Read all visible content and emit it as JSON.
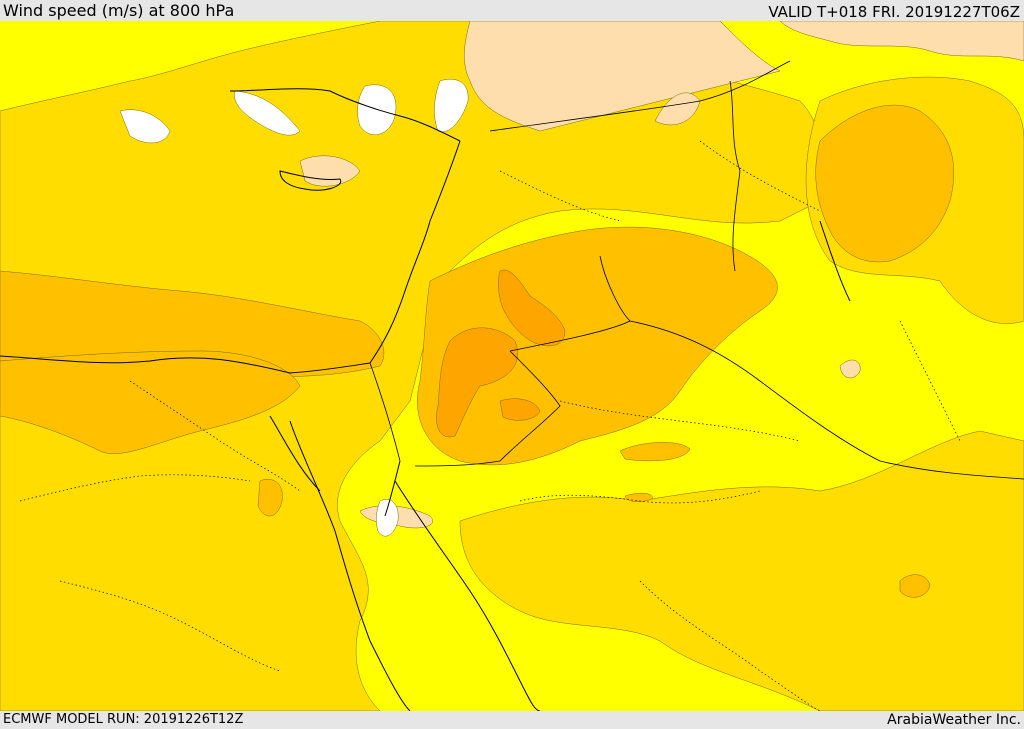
{
  "header": {
    "title": "Wind speed (m/s) at 800 hPa",
    "valid": "VALID T+018 FRI. 20191227T06Z"
  },
  "footer": {
    "model_run": "ECMWF MODEL RUN: 20191226T12Z",
    "credit": "ArabiaWeather Inc."
  },
  "colors": {
    "band_low": "#ffff00",
    "band_mid": "#ffdd00",
    "band_high": "#ffc000",
    "band_higher": "#ffa500",
    "band_light": "#ffdead",
    "below_range": "#ffffff"
  }
}
